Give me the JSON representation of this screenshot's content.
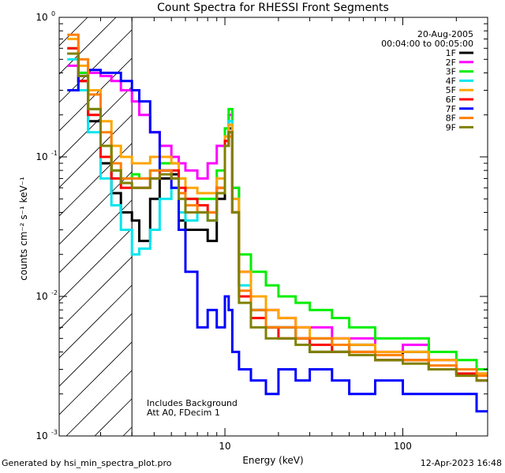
{
  "chart_data": {
    "type": "line",
    "step": true,
    "title": "Count Spectra for RHESSI Front Segments",
    "xlabel": "Energy (keV)",
    "ylabel": "counts cm⁻² s⁻¹ keV⁻¹",
    "xscale": "log",
    "yscale": "log",
    "xlim": [
      1.17,
      300
    ],
    "ylim": [
      0.001,
      1
    ],
    "x_ticks": [
      {
        "v": 10,
        "t": "10"
      },
      {
        "v": 100,
        "t": "100"
      }
    ],
    "y_ticks": [
      {
        "v": 1,
        "base": "10",
        "exp": "0"
      },
      {
        "v": 0.1,
        "base": "10",
        "exp": "-1"
      },
      {
        "v": 0.01,
        "base": "10",
        "exp": "-2"
      },
      {
        "v": 0.001,
        "base": "10",
        "exp": "-3"
      }
    ],
    "hatched_region_max_keV": 3,
    "date": "20-Aug-2005",
    "time_range": "00:04:00 to 00:05:00",
    "notes": [
      "Includes Background",
      "Att A0, FDecim 1"
    ],
    "series": [
      {
        "name": "1F",
        "color": "#000000",
        "x": [
          1.3,
          1.5,
          1.7,
          2.0,
          2.3,
          2.6,
          3.0,
          3.3,
          3.8,
          4.3,
          5.0,
          5.5,
          6.0,
          7.0,
          8.0,
          9.0,
          10.0,
          10.5,
          11.0,
          12.0,
          14.0,
          17.0,
          20.0,
          25.0,
          30.0,
          40.0,
          50.0,
          70.0,
          100.0,
          140.0,
          200.0,
          260.0
        ],
        "y": [
          0.55,
          0.35,
          0.18,
          0.09,
          0.055,
          0.04,
          0.035,
          0.025,
          0.05,
          0.07,
          0.075,
          0.035,
          0.03,
          0.03,
          0.025,
          0.05,
          0.12,
          0.16,
          0.04,
          0.012,
          0.008,
          0.006,
          0.006,
          0.005,
          0.004,
          0.004,
          0.0045,
          0.0035,
          0.004,
          0.003,
          0.003,
          0.0025
        ]
      },
      {
        "name": "2F",
        "color": "#ff00ff",
        "x": [
          1.3,
          1.5,
          1.7,
          2.0,
          2.3,
          2.6,
          3.0,
          3.3,
          3.8,
          4.3,
          5.0,
          5.5,
          6.0,
          7.0,
          8.0,
          9.0,
          10.0,
          10.5,
          11.0,
          12.0,
          14.0,
          17.0,
          20.0,
          25.0,
          30.0,
          40.0,
          50.0,
          70.0,
          100.0,
          140.0,
          200.0,
          260.0
        ],
        "y": [
          0.45,
          0.4,
          0.4,
          0.38,
          0.35,
          0.3,
          0.25,
          0.2,
          0.15,
          0.12,
          0.1,
          0.09,
          0.08,
          0.07,
          0.09,
          0.12,
          0.16,
          0.2,
          0.06,
          0.015,
          0.01,
          0.008,
          0.007,
          0.006,
          0.006,
          0.005,
          0.005,
          0.004,
          0.0045,
          0.0035,
          0.003,
          0.0028
        ]
      },
      {
        "name": "3F",
        "color": "#00ee00",
        "x": [
          1.3,
          1.5,
          1.7,
          2.0,
          2.3,
          2.6,
          3.0,
          3.3,
          3.8,
          4.3,
          5.0,
          5.5,
          6.0,
          7.0,
          8.0,
          9.0,
          10.0,
          10.5,
          11.0,
          12.0,
          14.0,
          17.0,
          20.0,
          25.0,
          30.0,
          40.0,
          50.0,
          70.0,
          100.0,
          140.0,
          200.0,
          260.0
        ],
        "y": [
          0.6,
          0.4,
          0.22,
          0.12,
          0.08,
          0.07,
          0.075,
          0.07,
          0.08,
          0.09,
          0.09,
          0.07,
          0.05,
          0.05,
          0.05,
          0.08,
          0.16,
          0.22,
          0.06,
          0.02,
          0.015,
          0.012,
          0.01,
          0.009,
          0.008,
          0.007,
          0.006,
          0.005,
          0.005,
          0.004,
          0.0035,
          0.003
        ]
      },
      {
        "name": "4F",
        "color": "#00e5ee",
        "x": [
          1.3,
          1.5,
          1.7,
          2.0,
          2.3,
          2.6,
          3.0,
          3.3,
          3.8,
          4.3,
          5.0,
          5.5,
          6.0,
          7.0,
          8.0,
          9.0,
          10.0,
          10.5,
          11.0,
          12.0,
          14.0,
          17.0,
          20.0,
          25.0,
          30.0,
          40.0,
          50.0,
          70.0,
          100.0,
          140.0,
          200.0,
          260.0
        ],
        "y": [
          0.5,
          0.3,
          0.15,
          0.07,
          0.045,
          0.03,
          0.02,
          0.022,
          0.03,
          0.05,
          0.06,
          0.04,
          0.035,
          0.04,
          0.035,
          0.06,
          0.14,
          0.18,
          0.05,
          0.012,
          0.008,
          0.006,
          0.006,
          0.005,
          0.005,
          0.004,
          0.004,
          0.0035,
          0.0035,
          0.003,
          0.0028,
          0.0025
        ]
      },
      {
        "name": "5F",
        "color": "#ffa500",
        "x": [
          1.3,
          1.5,
          1.7,
          2.0,
          2.3,
          2.6,
          3.0,
          3.3,
          3.8,
          4.3,
          5.0,
          5.5,
          6.0,
          7.0,
          8.0,
          9.0,
          10.0,
          10.5,
          11.0,
          12.0,
          14.0,
          17.0,
          20.0,
          25.0,
          30.0,
          40.0,
          50.0,
          70.0,
          100.0,
          140.0,
          200.0,
          260.0
        ],
        "y": [
          0.7,
          0.45,
          0.3,
          0.18,
          0.12,
          0.1,
          0.09,
          0.09,
          0.1,
          0.1,
          0.09,
          0.07,
          0.06,
          0.055,
          0.055,
          0.07,
          0.14,
          0.17,
          0.05,
          0.015,
          0.01,
          0.008,
          0.007,
          0.006,
          0.005,
          0.005,
          0.0045,
          0.004,
          0.004,
          0.0035,
          0.003,
          0.0028
        ]
      },
      {
        "name": "6F",
        "color": "#ff0000",
        "x": [
          1.3,
          1.5,
          1.7,
          2.0,
          2.3,
          2.6,
          3.0,
          3.3,
          3.8,
          4.3,
          5.0,
          5.5,
          6.0,
          7.0,
          8.0,
          9.0,
          10.0,
          10.5,
          11.0,
          12.0,
          14.0,
          17.0,
          20.0,
          25.0,
          30.0,
          40.0,
          50.0,
          70.0,
          100.0,
          140.0,
          200.0,
          260.0
        ],
        "y": [
          0.6,
          0.35,
          0.2,
          0.1,
          0.07,
          0.06,
          0.06,
          0.06,
          0.07,
          0.08,
          0.08,
          0.06,
          0.05,
          0.045,
          0.04,
          0.06,
          0.13,
          0.15,
          0.04,
          0.01,
          0.007,
          0.006,
          0.005,
          0.005,
          0.0045,
          0.004,
          0.004,
          0.0035,
          0.0035,
          0.003,
          0.0028,
          0.0025
        ]
      },
      {
        "name": "7F",
        "color": "#0000ff",
        "x": [
          1.3,
          1.5,
          1.7,
          2.0,
          2.3,
          2.6,
          3.0,
          3.3,
          3.8,
          4.3,
          5.0,
          5.5,
          6.0,
          7.0,
          8.0,
          9.0,
          10.0,
          10.5,
          11.0,
          12.0,
          14.0,
          17.0,
          20.0,
          25.0,
          30.0,
          40.0,
          50.0,
          70.0,
          100.0,
          140.0,
          200.0,
          260.0
        ],
        "y": [
          0.3,
          0.38,
          0.42,
          0.4,
          0.4,
          0.35,
          0.3,
          0.25,
          0.15,
          0.08,
          0.06,
          0.03,
          0.015,
          0.006,
          0.008,
          0.006,
          0.01,
          0.008,
          0.004,
          0.003,
          0.0025,
          0.002,
          0.003,
          0.0025,
          0.003,
          0.0025,
          0.002,
          0.0025,
          0.002,
          0.002,
          0.002,
          0.0015
        ]
      },
      {
        "name": "8F",
        "color": "#ff7f00",
        "x": [
          1.3,
          1.5,
          1.7,
          2.0,
          2.3,
          2.6,
          3.0,
          3.3,
          3.8,
          4.3,
          5.0,
          5.5,
          6.0,
          7.0,
          8.0,
          9.0,
          10.0,
          10.5,
          11.0,
          12.0,
          14.0,
          17.0,
          20.0,
          25.0,
          30.0,
          40.0,
          50.0,
          70.0,
          100.0,
          140.0,
          200.0,
          260.0
        ],
        "y": [
          0.75,
          0.5,
          0.28,
          0.15,
          0.09,
          0.07,
          0.07,
          0.07,
          0.08,
          0.08,
          0.07,
          0.055,
          0.045,
          0.04,
          0.04,
          0.06,
          0.12,
          0.14,
          0.04,
          0.011,
          0.008,
          0.006,
          0.006,
          0.005,
          0.005,
          0.0045,
          0.004,
          0.0038,
          0.0035,
          0.0032,
          0.003,
          0.0027
        ]
      },
      {
        "name": "9F",
        "color": "#808000",
        "x": [
          1.3,
          1.5,
          1.7,
          2.0,
          2.3,
          2.6,
          3.0,
          3.3,
          3.8,
          4.3,
          5.0,
          5.5,
          6.0,
          7.0,
          8.0,
          9.0,
          10.0,
          10.5,
          11.0,
          12.0,
          14.0,
          17.0,
          20.0,
          25.0,
          30.0,
          40.0,
          50.0,
          70.0,
          100.0,
          140.0,
          200.0,
          260.0
        ],
        "y": [
          0.55,
          0.38,
          0.22,
          0.12,
          0.08,
          0.065,
          0.06,
          0.06,
          0.07,
          0.075,
          0.07,
          0.05,
          0.04,
          0.04,
          0.035,
          0.055,
          0.12,
          0.15,
          0.04,
          0.009,
          0.006,
          0.005,
          0.005,
          0.0045,
          0.004,
          0.004,
          0.0038,
          0.0035,
          0.0033,
          0.003,
          0.0027,
          0.0025
        ]
      }
    ]
  },
  "footer": {
    "generated_by": "Generated by hsi_min_spectra_plot.pro",
    "timestamp": "12-Apr-2023 16:48"
  }
}
